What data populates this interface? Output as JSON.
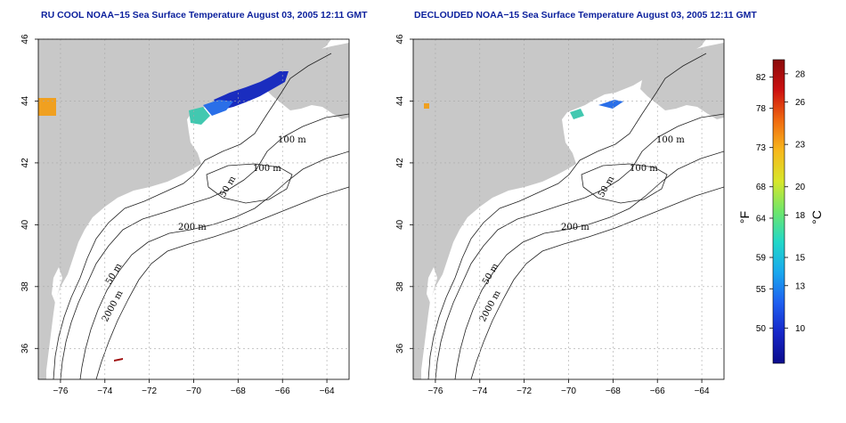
{
  "panels": [
    {
      "id": "left",
      "title": "RU COOL NOAA−15 Sea Surface Temperature August 03, 2005 12:11 GMT",
      "x_ticks": [
        "−76",
        "−74",
        "−72",
        "−70",
        "−68",
        "−66",
        "−64"
      ],
      "y_ticks": [
        "36",
        "38",
        "40",
        "42",
        "44",
        "46"
      ],
      "contour_labels": [
        "100 m",
        "100 m",
        "50 m",
        "200 m",
        "50 m",
        "2000 m"
      ]
    },
    {
      "id": "right",
      "title": "DECLOUDED NOAA−15 Sea Surface Temperature August 03, 2005 12:11 GMT",
      "x_ticks": [
        "−76",
        "−74",
        "−72",
        "−70",
        "−68",
        "−66",
        "−64"
      ],
      "y_ticks": [
        "36",
        "38",
        "40",
        "42",
        "44",
        "46"
      ],
      "contour_labels": [
        "100 m",
        "100 m",
        "50 m",
        "200 m",
        "50 m",
        "2000 m"
      ]
    }
  ],
  "colorbar": {
    "fahrenheit_ticks": [
      "82",
      "78",
      "73",
      "68",
      "64",
      "59",
      "55",
      "50"
    ],
    "celsius_ticks": [
      "28",
      "26",
      "23",
      "20",
      "18",
      "15",
      "13",
      "10"
    ],
    "fahrenheit_unit": "°F",
    "celsius_unit": "°C",
    "colors": [
      "#0b0b8c",
      "#1626c8",
      "#1e5ff0",
      "#19a8ee",
      "#22d8c8",
      "#6ee66b",
      "#d8e62a",
      "#f7b81c",
      "#f06a10",
      "#cc1010",
      "#8a0a0a"
    ]
  },
  "colors": {
    "land": "#c8c8c8",
    "ocean": "#ffffff",
    "grid": "#a8a8a8",
    "title": "#0a1f9c"
  }
}
